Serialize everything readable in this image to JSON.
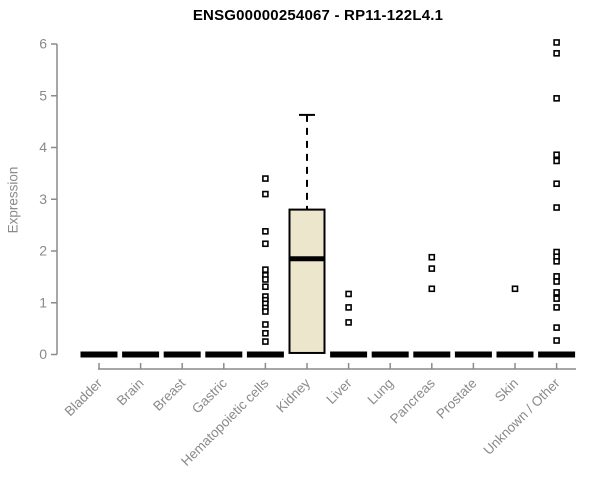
{
  "chart_data": {
    "type": "boxplot",
    "title": "ENSG00000254067 - RP11-122L4.1",
    "ylabel": "Expression",
    "xlabel": "",
    "ylim": [
      0,
      6
    ],
    "yticks": [
      0,
      1,
      2,
      3,
      4,
      5,
      6
    ],
    "grid": "off",
    "legend": "none",
    "categories": [
      "Bladder",
      "Brain",
      "Breast",
      "Gastric",
      "Hematopoietic cells",
      "Kidney",
      "Liver",
      "Lung",
      "Pancreas",
      "Prostate",
      "Skin",
      "Unknown / Other"
    ],
    "boxes": [
      {
        "category": "Bladder",
        "collapsed": true,
        "value": 0,
        "outliers": []
      },
      {
        "category": "Brain",
        "collapsed": true,
        "value": 0,
        "outliers": []
      },
      {
        "category": "Breast",
        "collapsed": true,
        "value": 0,
        "outliers": []
      },
      {
        "category": "Gastric",
        "collapsed": true,
        "value": 0,
        "outliers": []
      },
      {
        "category": "Hematopoietic cells",
        "collapsed": true,
        "value": 0,
        "outliers": [
          3.4,
          3.1,
          2.38,
          2.14,
          1.64,
          1.53,
          1.45,
          1.31,
          1.12,
          1.05,
          0.98,
          0.9,
          0.83,
          0.58,
          0.41,
          0.25
        ]
      },
      {
        "category": "Kidney",
        "collapsed": false,
        "q1": 0.03,
        "median": 1.85,
        "q3": 2.8,
        "whisker_low": 0.03,
        "whisker_high": 4.63,
        "outliers": []
      },
      {
        "category": "Liver",
        "collapsed": true,
        "value": 0,
        "outliers": [
          1.17,
          0.91,
          0.62
        ]
      },
      {
        "category": "Lung",
        "collapsed": true,
        "value": 0,
        "outliers": []
      },
      {
        "category": "Pancreas",
        "collapsed": true,
        "value": 0,
        "outliers": [
          1.88,
          1.66,
          1.27
        ]
      },
      {
        "category": "Prostate",
        "collapsed": true,
        "value": 0,
        "outliers": []
      },
      {
        "category": "Skin",
        "collapsed": true,
        "value": 0,
        "outliers": [
          1.27
        ]
      },
      {
        "category": "Unknown / Other",
        "collapsed": true,
        "value": 0,
        "outliers": [
          6.03,
          5.82,
          4.95,
          3.86,
          3.74,
          3.3,
          2.84,
          1.98,
          1.89,
          1.8,
          1.51,
          1.41,
          1.2,
          1.08,
          0.91,
          0.52,
          0.27
        ]
      }
    ],
    "colors": {
      "title": "#000000",
      "axis": "#8a8a8a",
      "tick_label": "#8a8a8a",
      "box_fill": "#ece6cc",
      "box_stroke": "#000000",
      "collapsed_bar": "#000000",
      "outlier_stroke": "#000000",
      "outlier_fill": "#ffffff",
      "background": "#ffffff"
    }
  }
}
